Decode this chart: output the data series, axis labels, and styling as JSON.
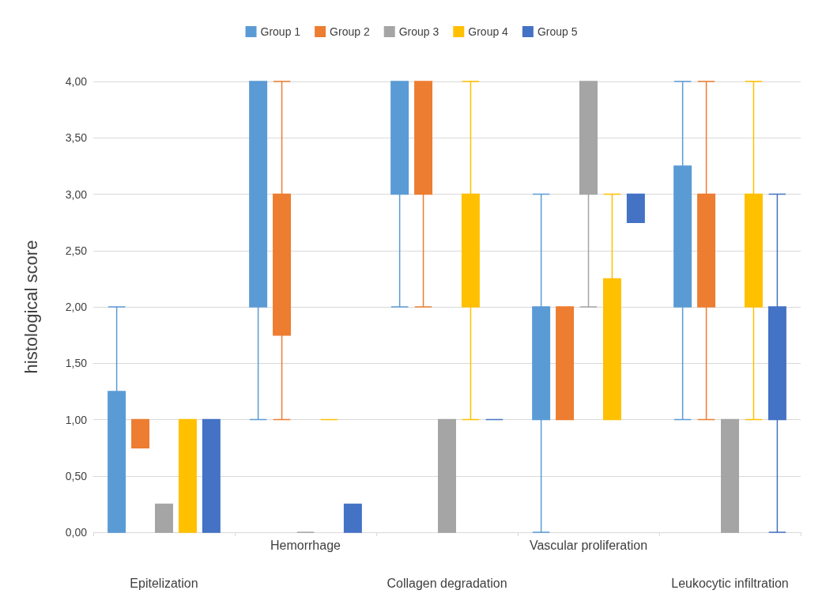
{
  "chart_data": {
    "type": "box",
    "ylabel": "histological score",
    "categories": [
      "Epitelization",
      "Hemorrhage",
      "Collagen degradation",
      "Vascular proliferation",
      "Leukocytic infiltration"
    ],
    "ylim": [
      0,
      4
    ],
    "yticks": [
      {
        "value": 0,
        "label": "0,00"
      },
      {
        "value": 0.5,
        "label": "0,50"
      },
      {
        "value": 1,
        "label": "1,00"
      },
      {
        "value": 1.5,
        "label": "1,50"
      },
      {
        "value": 2,
        "label": "2,00"
      },
      {
        "value": 2.5,
        "label": "2,50"
      },
      {
        "value": 3,
        "label": "3,00"
      },
      {
        "value": 3.5,
        "label": "3,50"
      },
      {
        "value": 4,
        "label": "4,00"
      }
    ],
    "grid": "y",
    "legend": "top",
    "series": [
      {
        "name": "Group 1",
        "color": "#5b9bd5",
        "boxes": [
          {
            "low": 0,
            "q1": 0,
            "median": 1,
            "q3": 1.25,
            "high": 2
          },
          {
            "low": 1,
            "q1": 2,
            "median": 3,
            "q3": 4,
            "high": 4
          },
          {
            "low": 2,
            "q1": 3,
            "median": 3.5,
            "q3": 4,
            "high": 4
          },
          {
            "low": 0,
            "q1": 1,
            "median": 1.5,
            "q3": 2,
            "high": 3
          },
          {
            "low": 1,
            "q1": 2,
            "median": 2.5,
            "q3": 3.25,
            "high": 4
          }
        ]
      },
      {
        "name": "Group 2",
        "color": "#ed7d31",
        "boxes": [
          {
            "low": 0.75,
            "q1": 0.75,
            "median": 1,
            "q3": 1,
            "high": 1
          },
          {
            "low": 1,
            "q1": 1.75,
            "median": 2,
            "q3": 3,
            "high": 4
          },
          {
            "low": 2,
            "q1": 3,
            "median": 3.5,
            "q3": 4,
            "high": 4
          },
          {
            "low": 1,
            "q1": 1,
            "median": 1.5,
            "q3": 2,
            "high": 2
          },
          {
            "low": 1,
            "q1": 2,
            "median": 2.5,
            "q3": 3,
            "high": 4
          }
        ]
      },
      {
        "name": "Group 3",
        "color": "#a5a5a5",
        "boxes": [
          {
            "low": 0,
            "q1": 0,
            "median": 0,
            "q3": 0.25,
            "high": 0.25
          },
          {
            "low": 0,
            "q1": 0,
            "median": 0,
            "q3": 0,
            "high": 0
          },
          {
            "low": 0,
            "q1": 0,
            "median": 0.5,
            "q3": 1,
            "high": 1
          },
          {
            "low": 2,
            "q1": 3,
            "median": 3.5,
            "q3": 4,
            "high": 4
          },
          {
            "low": 0,
            "q1": 0,
            "median": 0.5,
            "q3": 1,
            "high": 1
          }
        ]
      },
      {
        "name": "Group 4",
        "color": "#ffc000",
        "boxes": [
          {
            "low": 0,
            "q1": 0,
            "median": 1,
            "q3": 1,
            "high": 1
          },
          {
            "low": 1,
            "q1": 1,
            "median": 1,
            "q3": 1,
            "high": 1
          },
          {
            "low": 1,
            "q1": 2,
            "median": 2.5,
            "q3": 3,
            "high": 4
          },
          {
            "low": 1,
            "q1": 1,
            "median": 2,
            "q3": 2.25,
            "high": 3
          },
          {
            "low": 1,
            "q1": 2,
            "median": 2.5,
            "q3": 3,
            "high": 4
          }
        ]
      },
      {
        "name": "Group 5",
        "color": "#4472c4",
        "boxes": [
          {
            "low": 0,
            "q1": 0,
            "median": 1,
            "q3": 1,
            "high": 1
          },
          {
            "low": 0,
            "q1": 0,
            "median": 0,
            "q3": 0.25,
            "high": 0.25
          },
          {
            "low": 1,
            "q1": 1,
            "median": 1,
            "q3": 1,
            "high": 1
          },
          {
            "low": 2.75,
            "q1": 2.75,
            "median": 3,
            "q3": 3,
            "high": 3
          },
          {
            "low": 0,
            "q1": 1,
            "median": 1.5,
            "q3": 2,
            "high": 3
          }
        ]
      }
    ]
  }
}
